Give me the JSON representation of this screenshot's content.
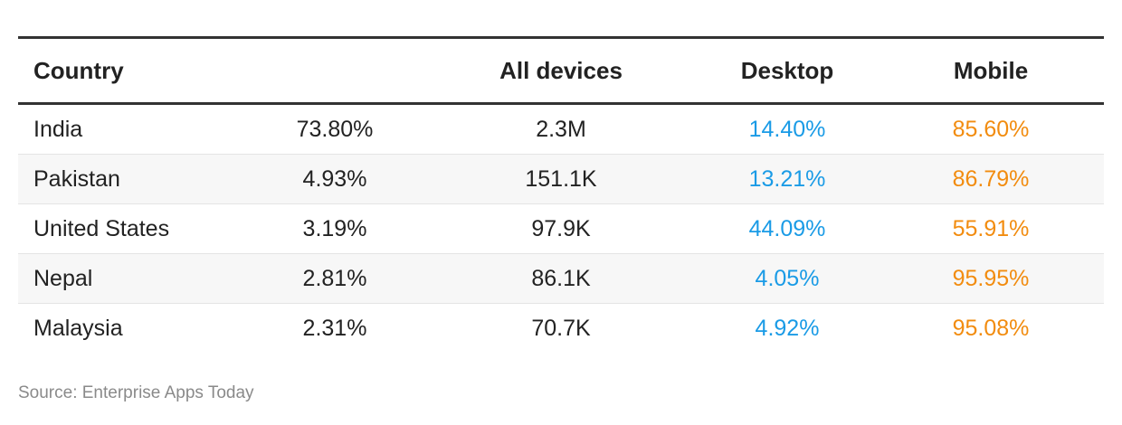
{
  "chart_data": {
    "type": "table",
    "columns": [
      "Country",
      "",
      "All devices",
      "Desktop",
      "Mobile"
    ],
    "rows": [
      [
        "India",
        "73.80%",
        "2.3M",
        "14.40%",
        "85.60%"
      ],
      [
        "Pakistan",
        "4.93%",
        "151.1K",
        "13.21%",
        "86.79%"
      ],
      [
        "United States",
        "3.19%",
        "97.9K",
        "44.09%",
        "55.91%"
      ],
      [
        "Nepal",
        "2.81%",
        "86.1K",
        "4.05%",
        "95.95%"
      ],
      [
        "Malaysia",
        "2.31%",
        "70.7K",
        "4.92%",
        "95.08%"
      ]
    ],
    "colors": {
      "desktop": "#1a9be6",
      "mobile": "#f28c0f",
      "rule": "#333333",
      "alt_row": "#f7f7f7"
    }
  },
  "source": "Source: Enterprise Apps Today"
}
